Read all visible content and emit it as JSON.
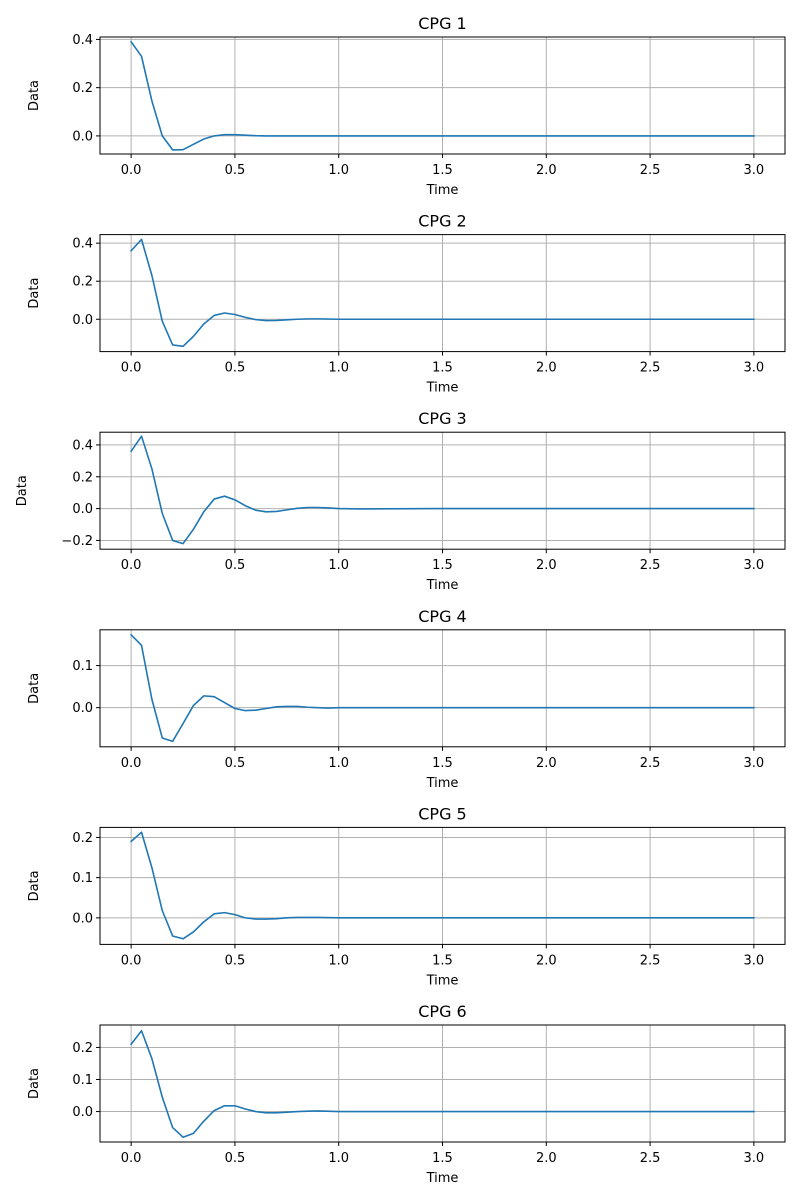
{
  "chart_data": [
    {
      "type": "line",
      "title": "CPG 1",
      "xlabel": "Time",
      "ylabel": "Data",
      "grid": true,
      "xlim": [
        -0.15,
        3.15
      ],
      "ylim": [
        -0.075,
        0.41
      ],
      "xticks": [
        0.0,
        0.5,
        1.0,
        1.5,
        2.0,
        2.5,
        3.0
      ],
      "xtick_labels": [
        "0.0",
        "0.5",
        "1.0",
        "1.5",
        "2.0",
        "2.5",
        "3.0"
      ],
      "yticks": [
        0.0,
        0.2,
        0.4
      ],
      "ytick_labels": [
        "0.0",
        "0.2",
        "0.4"
      ],
      "series": [
        {
          "name": "CPG 1",
          "color": "#1f77b4",
          "x": [
            0,
            0.05,
            0.1,
            0.15,
            0.2,
            0.25,
            0.3,
            0.35,
            0.4,
            0.45,
            0.5,
            0.55,
            0.6,
            0.65,
            0.7,
            0.8,
            0.9,
            1.0,
            1.5,
            2.0,
            2.5,
            3.0
          ],
          "y": [
            0.39,
            0.33,
            0.145,
            0.0,
            -0.058,
            -0.057,
            -0.035,
            -0.013,
            0.0,
            0.005,
            0.005,
            0.003,
            0.001,
            0.0,
            0.0,
            0.0,
            0.0,
            0.0,
            0.0,
            0.0,
            0.0,
            0.0
          ]
        }
      ]
    },
    {
      "type": "line",
      "title": "CPG 2",
      "xlabel": "Time",
      "ylabel": "Data",
      "grid": true,
      "xlim": [
        -0.15,
        3.15
      ],
      "ylim": [
        -0.17,
        0.445
      ],
      "xticks": [
        0.0,
        0.5,
        1.0,
        1.5,
        2.0,
        2.5,
        3.0
      ],
      "xtick_labels": [
        "0.0",
        "0.5",
        "1.0",
        "1.5",
        "2.0",
        "2.5",
        "3.0"
      ],
      "yticks": [
        0.0,
        0.2,
        0.4
      ],
      "ytick_labels": [
        "0.0",
        "0.2",
        "0.4"
      ],
      "series": [
        {
          "name": "CPG 2",
          "color": "#1f77b4",
          "x": [
            0,
            0.05,
            0.1,
            0.15,
            0.2,
            0.25,
            0.3,
            0.35,
            0.4,
            0.45,
            0.5,
            0.55,
            0.6,
            0.65,
            0.7,
            0.75,
            0.8,
            0.85,
            0.9,
            1.0,
            1.5,
            2.0,
            2.5,
            3.0
          ],
          "y": [
            0.36,
            0.42,
            0.23,
            -0.01,
            -0.135,
            -0.142,
            -0.09,
            -0.025,
            0.02,
            0.033,
            0.025,
            0.01,
            -0.002,
            -0.007,
            -0.006,
            -0.003,
            0.0,
            0.002,
            0.002,
            0.0,
            0.0,
            0.0,
            0.0,
            0.0
          ]
        }
      ]
    },
    {
      "type": "line",
      "title": "CPG 3",
      "xlabel": "Time",
      "ylabel": "Data",
      "grid": true,
      "xlim": [
        -0.15,
        3.15
      ],
      "ylim": [
        -0.255,
        0.48
      ],
      "xticks": [
        0.0,
        0.5,
        1.0,
        1.5,
        2.0,
        2.5,
        3.0
      ],
      "xtick_labels": [
        "0.0",
        "0.5",
        "1.0",
        "1.5",
        "2.0",
        "2.5",
        "3.0"
      ],
      "yticks": [
        -0.2,
        0.0,
        0.2,
        0.4
      ],
      "ytick_labels": [
        "−0.2",
        "0.0",
        "0.2",
        "0.4"
      ],
      "series": [
        {
          "name": "CPG 3",
          "color": "#1f77b4",
          "x": [
            0,
            0.05,
            0.1,
            0.15,
            0.2,
            0.25,
            0.3,
            0.35,
            0.4,
            0.45,
            0.5,
            0.55,
            0.6,
            0.65,
            0.7,
            0.75,
            0.8,
            0.85,
            0.9,
            0.95,
            1.0,
            1.1,
            1.5,
            2.0,
            2.5,
            3.0
          ],
          "y": [
            0.36,
            0.455,
            0.25,
            -0.03,
            -0.2,
            -0.22,
            -0.13,
            -0.02,
            0.06,
            0.078,
            0.055,
            0.018,
            -0.01,
            -0.02,
            -0.018,
            -0.008,
            0.002,
            0.007,
            0.007,
            0.004,
            0.0,
            -0.002,
            0.0,
            0.0,
            0.0,
            0.0
          ]
        }
      ]
    },
    {
      "type": "line",
      "title": "CPG 4",
      "xlabel": "Time",
      "ylabel": "Data",
      "grid": true,
      "xlim": [
        -0.15,
        3.15
      ],
      "ylim": [
        -0.093,
        0.185
      ],
      "xticks": [
        0.0,
        0.5,
        1.0,
        1.5,
        2.0,
        2.5,
        3.0
      ],
      "xtick_labels": [
        "0.0",
        "0.5",
        "1.0",
        "1.5",
        "2.0",
        "2.5",
        "3.0"
      ],
      "yticks": [
        0.0,
        0.1
      ],
      "ytick_labels": [
        "0.0",
        "0.1"
      ],
      "series": [
        {
          "name": "CPG 4",
          "color": "#1f77b4",
          "x": [
            0,
            0.05,
            0.1,
            0.15,
            0.2,
            0.25,
            0.3,
            0.35,
            0.4,
            0.45,
            0.5,
            0.55,
            0.6,
            0.65,
            0.7,
            0.75,
            0.8,
            0.85,
            0.9,
            0.95,
            1.0,
            1.5,
            2.0,
            2.5,
            3.0
          ],
          "y": [
            0.173,
            0.148,
            0.02,
            -0.072,
            -0.08,
            -0.038,
            0.005,
            0.028,
            0.026,
            0.012,
            -0.002,
            -0.007,
            -0.006,
            -0.002,
            0.002,
            0.003,
            0.003,
            0.001,
            0.0,
            -0.001,
            0.0,
            0.0,
            0.0,
            0.0,
            0.0
          ]
        }
      ]
    },
    {
      "type": "line",
      "title": "CPG 5",
      "xlabel": "Time",
      "ylabel": "Data",
      "grid": true,
      "xlim": [
        -0.15,
        3.15
      ],
      "ylim": [
        -0.066,
        0.225
      ],
      "xticks": [
        0.0,
        0.5,
        1.0,
        1.5,
        2.0,
        2.5,
        3.0
      ],
      "xtick_labels": [
        "0.0",
        "0.5",
        "1.0",
        "1.5",
        "2.0",
        "2.5",
        "3.0"
      ],
      "yticks": [
        0.0,
        0.1,
        0.2
      ],
      "ytick_labels": [
        "0.0",
        "0.1",
        "0.2"
      ],
      "series": [
        {
          "name": "CPG 5",
          "color": "#1f77b4",
          "x": [
            0,
            0.05,
            0.1,
            0.15,
            0.2,
            0.25,
            0.3,
            0.35,
            0.4,
            0.45,
            0.5,
            0.55,
            0.6,
            0.65,
            0.7,
            0.75,
            0.8,
            0.85,
            0.9,
            1.0,
            1.5,
            2.0,
            2.5,
            3.0
          ],
          "y": [
            0.19,
            0.213,
            0.125,
            0.018,
            -0.045,
            -0.052,
            -0.035,
            -0.01,
            0.01,
            0.013,
            0.008,
            0.0,
            -0.003,
            -0.003,
            -0.002,
            0.0,
            0.001,
            0.001,
            0.001,
            0.0,
            0.0,
            0.0,
            0.0,
            0.0
          ]
        }
      ]
    },
    {
      "type": "line",
      "title": "CPG 6",
      "xlabel": "Time",
      "ylabel": "Data",
      "grid": true,
      "xlim": [
        -0.15,
        3.15
      ],
      "ylim": [
        -0.095,
        0.27
      ],
      "xticks": [
        0.0,
        0.5,
        1.0,
        1.5,
        2.0,
        2.5,
        3.0
      ],
      "xtick_labels": [
        "0.0",
        "0.5",
        "1.0",
        "1.5",
        "2.0",
        "2.5",
        "3.0"
      ],
      "yticks": [
        0.0,
        0.1,
        0.2
      ],
      "ytick_labels": [
        "0.0",
        "0.1",
        "0.2"
      ],
      "series": [
        {
          "name": "CPG 6",
          "color": "#1f77b4",
          "x": [
            0,
            0.05,
            0.1,
            0.15,
            0.2,
            0.25,
            0.3,
            0.35,
            0.4,
            0.45,
            0.5,
            0.55,
            0.6,
            0.65,
            0.7,
            0.75,
            0.8,
            0.85,
            0.9,
            1.0,
            1.5,
            2.0,
            2.5,
            3.0
          ],
          "y": [
            0.21,
            0.252,
            0.165,
            0.045,
            -0.05,
            -0.08,
            -0.068,
            -0.03,
            0.003,
            0.018,
            0.018,
            0.008,
            0.0,
            -0.004,
            -0.004,
            -0.002,
            0.0,
            0.001,
            0.002,
            0.0,
            0.0,
            0.0,
            0.0,
            0.0
          ]
        }
      ]
    }
  ]
}
